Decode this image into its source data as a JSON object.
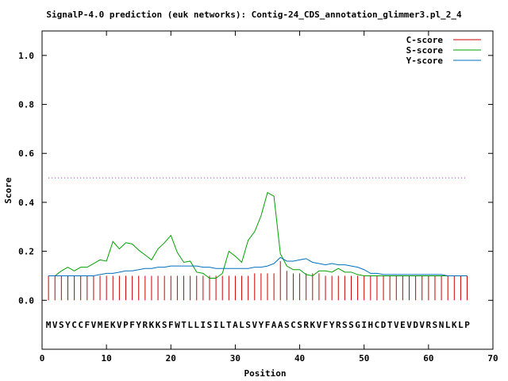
{
  "chart_data": {
    "type": "line",
    "title": "SignalP-4.0 prediction (euk networks): Contig-24_CDS_annotation_glimmer3.pl_2_4",
    "xlabel": "Position",
    "ylabel": "Score",
    "xlim": [
      0,
      70
    ],
    "ylim": [
      -0.2,
      1.1
    ],
    "xticks": [
      "0",
      "10",
      "20",
      "30",
      "40",
      "50",
      "60",
      "70"
    ],
    "yticks": [
      "0.0",
      "0.2",
      "0.4",
      "0.6",
      "0.8",
      "1.0"
    ],
    "threshold": 0.5,
    "sequence": "MVSYCCFVMEKVPFYRKKSFWTLLISILTALSVYFAASCSRKVFYRSSGIHCDTVEVDVRSNLKLP",
    "legend_position": "top-right",
    "series": [
      {
        "name": "C-score",
        "color": "#cc0000",
        "style": "impulse",
        "x": [
          1,
          2,
          3,
          4,
          5,
          6,
          7,
          8,
          9,
          10,
          11,
          12,
          13,
          14,
          15,
          16,
          17,
          18,
          19,
          20,
          21,
          22,
          23,
          24,
          25,
          26,
          27,
          28,
          29,
          30,
          31,
          32,
          33,
          34,
          35,
          36,
          37,
          38,
          39,
          40,
          41,
          42,
          43,
          44,
          45,
          46,
          47,
          48,
          49,
          50,
          51,
          52,
          53,
          54,
          55,
          56,
          57,
          58,
          59,
          60,
          61,
          62,
          63,
          64,
          65,
          66
        ],
        "values": [
          0.1,
          0.1,
          0.1,
          0.1,
          0.1,
          0.1,
          0.1,
          0.1,
          0.1,
          0.1,
          0.1,
          0.1,
          0.1,
          0.1,
          0.1,
          0.1,
          0.1,
          0.1,
          0.1,
          0.1,
          0.1,
          0.1,
          0.1,
          0.1,
          0.1,
          0.1,
          0.1,
          0.1,
          0.1,
          0.1,
          0.1,
          0.1,
          0.11,
          0.11,
          0.11,
          0.11,
          0.16,
          0.12,
          0.11,
          0.11,
          0.11,
          0.11,
          0.11,
          0.1,
          0.1,
          0.1,
          0.1,
          0.1,
          0.1,
          0.1,
          0.1,
          0.1,
          0.1,
          0.1,
          0.1,
          0.1,
          0.1,
          0.1,
          0.1,
          0.1,
          0.1,
          0.1,
          0.1,
          0.1,
          0.1,
          0.1
        ]
      },
      {
        "name": "S-score",
        "color": "#00a000",
        "style": "line",
        "x": [
          1,
          2,
          3,
          4,
          5,
          6,
          7,
          8,
          9,
          10,
          11,
          12,
          13,
          14,
          15,
          16,
          17,
          18,
          19,
          20,
          21,
          22,
          23,
          24,
          25,
          26,
          27,
          28,
          29,
          30,
          31,
          32,
          33,
          34,
          35,
          36,
          37,
          38,
          39,
          40,
          41,
          42,
          43,
          44,
          45,
          46,
          47,
          48,
          49,
          50,
          51,
          52,
          53,
          54,
          55,
          56,
          57,
          58,
          59,
          60,
          61,
          62,
          63,
          64,
          65,
          66
        ],
        "values": [
          0.1,
          0.1,
          0.12,
          0.135,
          0.12,
          0.135,
          0.135,
          0.15,
          0.165,
          0.16,
          0.24,
          0.21,
          0.235,
          0.23,
          0.205,
          0.185,
          0.165,
          0.21,
          0.235,
          0.265,
          0.195,
          0.155,
          0.16,
          0.115,
          0.11,
          0.09,
          0.09,
          0.11,
          0.2,
          0.18,
          0.155,
          0.245,
          0.28,
          0.345,
          0.44,
          0.425,
          0.19,
          0.14,
          0.125,
          0.125,
          0.105,
          0.1,
          0.12,
          0.12,
          0.115,
          0.13,
          0.115,
          0.115,
          0.105,
          0.1,
          0.1,
          0.1,
          0.1,
          0.1,
          0.1,
          0.1,
          0.1,
          0.1,
          0.1,
          0.1,
          0.1,
          0.1,
          0.1,
          0.1,
          0.1,
          0.1
        ]
      },
      {
        "name": "Y-score",
        "color": "#0070c0",
        "style": "line",
        "x": [
          1,
          2,
          3,
          4,
          5,
          6,
          7,
          8,
          9,
          10,
          11,
          12,
          13,
          14,
          15,
          16,
          17,
          18,
          19,
          20,
          21,
          22,
          23,
          24,
          25,
          26,
          27,
          28,
          29,
          30,
          31,
          32,
          33,
          34,
          35,
          36,
          37,
          38,
          39,
          40,
          41,
          42,
          43,
          44,
          45,
          46,
          47,
          48,
          49,
          50,
          51,
          52,
          53,
          54,
          55,
          56,
          57,
          58,
          59,
          60,
          61,
          62,
          63,
          64,
          65,
          66
        ],
        "values": [
          0.1,
          0.1,
          0.1,
          0.1,
          0.1,
          0.1,
          0.1,
          0.1,
          0.105,
          0.11,
          0.11,
          0.115,
          0.12,
          0.12,
          0.125,
          0.13,
          0.13,
          0.135,
          0.135,
          0.14,
          0.14,
          0.14,
          0.14,
          0.14,
          0.135,
          0.135,
          0.13,
          0.13,
          0.13,
          0.13,
          0.13,
          0.13,
          0.135,
          0.135,
          0.14,
          0.15,
          0.175,
          0.16,
          0.16,
          0.165,
          0.17,
          0.155,
          0.15,
          0.145,
          0.15,
          0.145,
          0.145,
          0.14,
          0.135,
          0.125,
          0.11,
          0.11,
          0.105,
          0.105,
          0.105,
          0.105,
          0.105,
          0.105,
          0.105,
          0.105,
          0.105,
          0.105,
          0.1,
          0.1,
          0.1,
          0.1
        ]
      }
    ]
  }
}
